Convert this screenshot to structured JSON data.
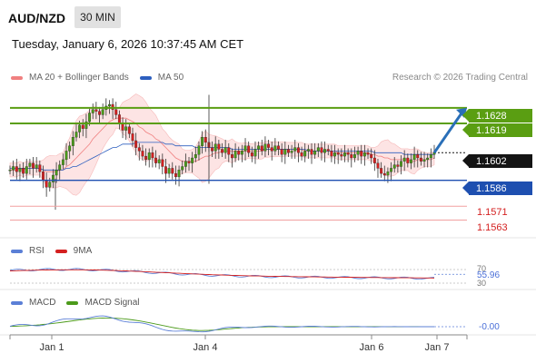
{
  "header": {
    "symbol": "AUD/NZD",
    "timeframe": "30 MIN",
    "datetime": "Tuesday, January 6, 2026 10:37:45 AM CET"
  },
  "legend": {
    "bollinger": "MA 20 + Bollinger Bands",
    "ma50": "MA 50",
    "credit": "Research © 2026 Trading Central"
  },
  "colors": {
    "resistance": "#5a9e12",
    "support": "#1e4fb0",
    "bollinger": "#f08080",
    "ma50": "#2d5fbf",
    "rsi": "#5b7fd6",
    "rsi_ma": "#d42020",
    "macd": "#5b7fd6",
    "macd_signal": "#4b9a1a",
    "current": "#141414"
  },
  "levels": {
    "r2": "1.1628",
    "r1": "1.1619",
    "current": "1.1602",
    "pivot": "1.1586",
    "s1": "1.1571",
    "s2": "1.1563"
  },
  "rsi": {
    "label": "RSI",
    "ma_label": "9MA",
    "value": "55.96",
    "upper": "70",
    "lower": "30"
  },
  "macd": {
    "label": "MACD",
    "signal_label": "MACD Signal",
    "value": "-0.00"
  },
  "xaxis": [
    "Jan 1",
    "Jan 4",
    "Jan 6",
    "Jan 7"
  ],
  "chart_data": {
    "type": "candlestick",
    "y_unit": "AUD/NZD price",
    "ylim": [
      1.1558,
      1.164
    ],
    "candles_close": [
      1.1592,
      1.1594,
      1.1591,
      1.1593,
      1.159,
      1.1594,
      1.1596,
      1.1593,
      1.1595,
      1.1591,
      1.1586,
      1.1582,
      1.1585,
      1.1589,
      1.1592,
      1.1595,
      1.1598,
      1.1603,
      1.1606,
      1.1611,
      1.1614,
      1.1618,
      1.1616,
      1.162,
      1.1625,
      1.1627,
      1.1626,
      1.1624,
      1.1627,
      1.1629,
      1.163,
      1.1627,
      1.1624,
      1.1619,
      1.1615,
      1.1617,
      1.1613,
      1.1609,
      1.1605,
      1.1603,
      1.16,
      1.1598,
      1.1602,
      1.1599,
      1.1596,
      1.1598,
      1.1594,
      1.159,
      1.1593,
      1.159,
      1.1588,
      1.1592,
      1.1594,
      1.1597,
      1.1596,
      1.1599,
      1.1601,
      1.1606,
      1.1611,
      1.1608,
      1.1605,
      1.1603,
      1.1607,
      1.1604,
      1.1602,
      1.1605,
      1.1601,
      1.1599,
      1.1603,
      1.1601,
      1.1603,
      1.1606,
      1.1602,
      1.16,
      1.1604,
      1.1606,
      1.1603,
      1.1607,
      1.1605,
      1.1603,
      1.1606,
      1.1604,
      1.1601,
      1.1604,
      1.1602,
      1.1603,
      1.1605,
      1.1602,
      1.16,
      1.1603,
      1.1604,
      1.1601,
      1.1603,
      1.1605,
      1.1602,
      1.1604,
      1.1603,
      1.16,
      1.1602,
      1.1601,
      1.16,
      1.1602,
      1.1601,
      1.1599,
      1.1601,
      1.1603,
      1.16,
      1.1602,
      1.1601,
      1.1599,
      1.1596,
      1.1593,
      1.159,
      1.1589,
      1.1591,
      1.1593,
      1.1595,
      1.1594,
      1.1597,
      1.1599,
      1.1596,
      1.1598,
      1.1601,
      1.1599,
      1.1597,
      1.1598,
      1.1599,
      1.1601,
      1.1602
    ],
    "ma20": [
      1.1592,
      1.1592,
      1.1592,
      1.1593,
      1.1592,
      1.1593,
      1.1593,
      1.1593,
      1.1593,
      1.1593,
      1.1592,
      1.1591,
      1.1591,
      1.1591,
      1.1591,
      1.1592,
      1.1592,
      1.1594,
      1.1595,
      1.1597,
      1.1599,
      1.1601,
      1.1603,
      1.1605,
      1.1607,
      1.161,
      1.1612,
      1.1614,
      1.1616,
      1.1618,
      1.162,
      1.1621,
      1.1622,
      1.1622,
      1.1622,
      1.1622,
      1.1621,
      1.162,
      1.1619,
      1.1617,
      1.1616,
      1.1614,
      1.1613,
      1.1612,
      1.161,
      1.1609,
      1.1607,
      1.1605,
      1.1603,
      1.1601,
      1.1599,
      1.1598,
      1.1597,
      1.1597,
      1.1597,
      1.1597,
      1.1597,
      1.1598,
      1.1599,
      1.16,
      1.16,
      1.1601,
      1.1602,
      1.1602,
      1.1603,
      1.1603,
      1.1603,
      1.1603,
      1.1603,
      1.1603,
      1.1603,
      1.1603,
      1.1603,
      1.1603,
      1.1603,
      1.1603,
      1.1603,
      1.1604,
      1.1604,
      1.1604,
      1.1604,
      1.1604,
      1.1604,
      1.1604,
      1.1604,
      1.1604,
      1.1604,
      1.1604,
      1.1604,
      1.1603,
      1.1603,
      1.1603,
      1.1603,
      1.1603,
      1.1603,
      1.1603,
      1.1603,
      1.1603,
      1.1603,
      1.1602,
      1.1602,
      1.1602,
      1.1602,
      1.1602,
      1.1602,
      1.1602,
      1.1602,
      1.1602,
      1.1602,
      1.1601,
      1.1601,
      1.16,
      1.16,
      1.1599,
      1.1599,
      1.1598,
      1.1598,
      1.1598,
      1.1598,
      1.1598,
      1.1598,
      1.1597,
      1.1597,
      1.1598,
      1.1598,
      1.1598,
      1.1598,
      1.1598,
      1.1599
    ],
    "ma50": [
      1.1593,
      1.1593,
      1.1593,
      1.1593,
      1.1593,
      1.1593,
      1.1593,
      1.1593,
      1.1593,
      1.1593,
      1.1592,
      1.1592,
      1.1592,
      1.1592,
      1.1592,
      1.1592,
      1.1592,
      1.1593,
      1.1593,
      1.1594,
      1.1594,
      1.1595,
      1.1596,
      1.1597,
      1.1598,
      1.1599,
      1.16,
      1.1601,
      1.1602,
      1.1603,
      1.1604,
      1.1605,
      1.1605,
      1.1606,
      1.1607,
      1.1607,
      1.1607,
      1.1607,
      1.1608,
      1.1608,
      1.1608,
      1.1608,
      1.1608,
      1.1608,
      1.1608,
      1.1608,
      1.1608,
      1.1607,
      1.1607,
      1.1607,
      1.1606,
      1.1606,
      1.1606,
      1.1606,
      1.1606,
      1.1606,
      1.1605,
      1.1605,
      1.1605,
      1.1605,
      1.1605,
      1.1605,
      1.1605,
      1.1605,
      1.1605,
      1.1605,
      1.1605,
      1.1604,
      1.1604,
      1.1604,
      1.1604,
      1.1604,
      1.1604,
      1.1604,
      1.1604,
      1.1604,
      1.1604,
      1.1604,
      1.1604,
      1.1604,
      1.1604,
      1.1604,
      1.1604,
      1.1604,
      1.1604,
      1.1604,
      1.1604,
      1.1604,
      1.1604,
      1.1604,
      1.1603,
      1.1603,
      1.1603,
      1.1603,
      1.1603,
      1.1603,
      1.1603,
      1.1603,
      1.1603,
      1.1603,
      1.1603,
      1.1603,
      1.1603,
      1.1603,
      1.1603,
      1.1603,
      1.1603,
      1.1603,
      1.1603,
      1.1603,
      1.1602,
      1.1602,
      1.1602,
      1.1602,
      1.1602,
      1.1602,
      1.1602,
      1.1602,
      1.1602,
      1.1601,
      1.1601,
      1.1601,
      1.1601,
      1.1601,
      1.1601,
      1.1601,
      1.1601,
      1.1601,
      1.1601
    ],
    "projection_target": 1.1628
  }
}
